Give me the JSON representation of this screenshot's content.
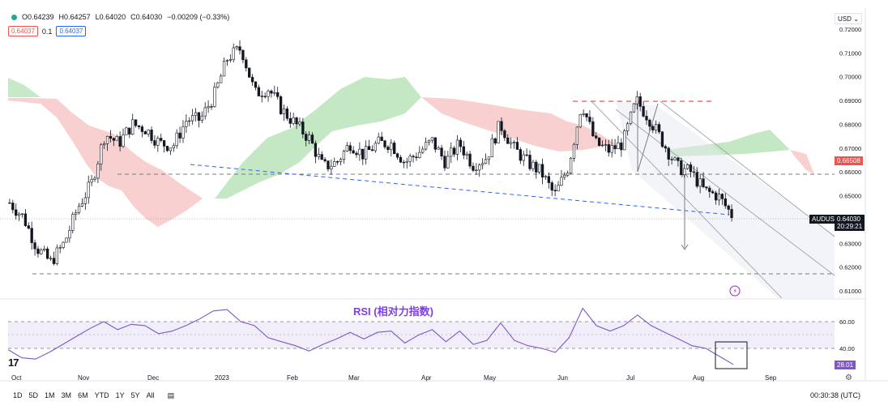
{
  "ohlc": {
    "open": "O0.64239",
    "high": "H0.64257",
    "low": "L0.64020",
    "close": "C0.64030",
    "change": "−0.00209 (−0.33%)"
  },
  "indicator_row": {
    "left_value": "0.64037",
    "param": "0.1",
    "right_value": "0.64037"
  },
  "currency": "USD",
  "price_axis": [
    "0.72000",
    "0.71000",
    "0.70000",
    "0.69000",
    "0.68000",
    "0.67000",
    "0.66000",
    "0.65000",
    "0.64000",
    "0.63000",
    "0.62000",
    "0.61000"
  ],
  "rsi_axis": [
    "60.00",
    "40.00"
  ],
  "tags": {
    "cloud_level": "0.66508",
    "symbol": "AUDUSD",
    "last_price": "0.64030",
    "countdown": "20:29:21",
    "rsi_value": "28.01"
  },
  "rsi_title": "RSI (相对力指数)",
  "time_axis": [
    "Oct",
    "Nov",
    "Dec",
    "2023",
    "Feb",
    "Mar",
    "Apr",
    "May",
    "Jun",
    "Jul",
    "Aug",
    "Sep"
  ],
  "timeframes": [
    "1D",
    "5D",
    "1M",
    "3M",
    "6M",
    "YTD",
    "1Y",
    "5Y",
    "All"
  ],
  "clock": "00:30:38 (UTC)",
  "logo": "17",
  "colors": {
    "up": "#ffffff",
    "down": "#131722",
    "cloud_green": "#a5d6a7",
    "cloud_red": "#f8bbbb",
    "rsi": "#7e57c2",
    "red_tag": "#ef5350",
    "blue_line": "#2962ff"
  },
  "chart_data": {
    "type": "candlestick",
    "symbol": "AUDUSD",
    "x": [
      "Oct",
      "Nov",
      "Dec",
      "2023",
      "Feb",
      "Mar",
      "Apr",
      "May",
      "Jun",
      "Jul",
      "Aug",
      "Sep"
    ],
    "ylim": [
      0.605,
      0.723
    ],
    "close_path": [
      0.647,
      0.641,
      0.628,
      0.622,
      0.63,
      0.645,
      0.655,
      0.676,
      0.672,
      0.68,
      0.678,
      0.672,
      0.671,
      0.682,
      0.682,
      0.692,
      0.708,
      0.712,
      0.693,
      0.695,
      0.686,
      0.68,
      0.674,
      0.662,
      0.664,
      0.672,
      0.667,
      0.672,
      0.672,
      0.664,
      0.668,
      0.673,
      0.664,
      0.672,
      0.663,
      0.666,
      0.68,
      0.67,
      0.664,
      0.66,
      0.65,
      0.662,
      0.689,
      0.672,
      0.669,
      0.672,
      0.69,
      0.682,
      0.672,
      0.662,
      0.66,
      0.652,
      0.65,
      0.642
    ],
    "rsi": [
      39,
      33,
      32,
      37,
      43,
      49,
      55,
      60,
      54,
      58,
      57,
      51,
      53,
      57,
      62,
      68,
      69,
      60,
      57,
      48,
      45,
      42,
      38,
      43,
      47,
      52,
      47,
      52,
      53,
      44,
      50,
      54,
      45,
      53,
      43,
      46,
      59,
      46,
      42,
      40,
      37,
      48,
      70,
      57,
      53,
      57,
      65,
      57,
      52,
      47,
      42,
      40,
      34,
      28
    ],
    "rsi_levels": [
      60,
      40
    ],
    "grid": false
  }
}
